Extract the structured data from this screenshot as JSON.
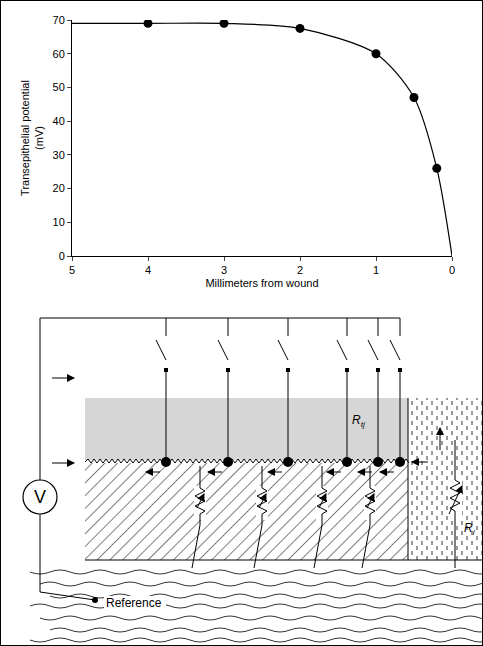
{
  "chart_data": {
    "type": "line",
    "xlabel": "Millimeters from wound",
    "ylabel": "Transepithelial potential (mV)",
    "xlim": [
      5,
      0
    ],
    "ylim": [
      0,
      70
    ],
    "xticks": [
      5,
      4,
      3,
      2,
      1,
      0
    ],
    "yticks": [
      0,
      10,
      20,
      30,
      40,
      50,
      60,
      70
    ],
    "grid": false,
    "series": [
      {
        "type": "line",
        "x": [
          5,
          4,
          3,
          2,
          1,
          0.5,
          0.2,
          0
        ],
        "values": [
          69,
          69,
          69,
          67.5,
          60,
          47,
          26,
          0
        ],
        "color": "#000000",
        "line_style": "solid"
      },
      {
        "type": "scatter",
        "x": [
          4,
          3,
          2,
          1,
          0.5,
          0.2
        ],
        "values": [
          69,
          69,
          67.5,
          60,
          47,
          26
        ],
        "color": "#000000",
        "marker": "circle"
      }
    ]
  },
  "diagram": {
    "voltmeter": "V",
    "reference": "Reference",
    "resistor_labels": [
      {
        "text": "R",
        "sub": "tj"
      },
      {
        "text": "R",
        "sub": "l"
      }
    ]
  }
}
